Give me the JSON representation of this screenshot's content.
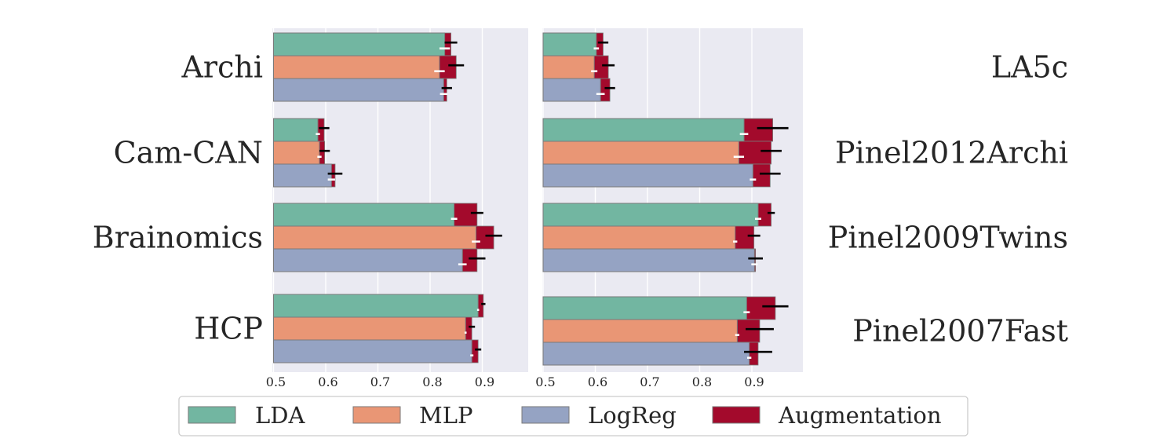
{
  "chart_data": {
    "type": "bar",
    "orientation": "horizontal",
    "title": "",
    "xlabel": "",
    "ylabel": "",
    "xlim": [
      0.5,
      1.0
    ],
    "xticks": [
      "0.5",
      "0.6",
      "0.7",
      "0.8",
      "0.9"
    ],
    "grid": true,
    "legend": {
      "position": "bottom-center",
      "entries": [
        {
          "name": "LDA",
          "color": "#72b6a1"
        },
        {
          "name": "MLP",
          "color": "#e99675"
        },
        {
          "name": "LogReg",
          "color": "#95a3c3"
        },
        {
          "name": "Augmentation",
          "color": "#a30a2c"
        }
      ]
    },
    "panels": [
      {
        "label_side": "left",
        "datasets": [
          {
            "name": "Archi",
            "bars": [
              {
                "model": "LDA",
                "base": 0.828,
                "base_err": 0.01,
                "aug": 0.84,
                "aug_err": 0.012
              },
              {
                "model": "MLP",
                "base": 0.818,
                "base_err": 0.01,
                "aug": 0.85,
                "aug_err": 0.015
              },
              {
                "model": "LogReg",
                "base": 0.826,
                "base_err": 0.007,
                "aug": 0.832,
                "aug_err": 0.01
              }
            ]
          },
          {
            "name": "Cam-CAN",
            "bars": [
              {
                "model": "LDA",
                "base": 0.585,
                "base_err": 0.004,
                "aug": 0.597,
                "aug_err": 0.01
              },
              {
                "model": "MLP",
                "base": 0.588,
                "base_err": 0.004,
                "aug": 0.598,
                "aug_err": 0.01
              },
              {
                "model": "LogReg",
                "base": 0.611,
                "base_err": 0.007,
                "aug": 0.618,
                "aug_err": 0.014
              }
            ]
          },
          {
            "name": "Brainomics",
            "bars": [
              {
                "model": "LDA",
                "base": 0.846,
                "base_err": 0.006,
                "aug": 0.89,
                "aug_err": 0.012
              },
              {
                "model": "MLP",
                "base": 0.888,
                "base_err": 0.008,
                "aug": 0.922,
                "aug_err": 0.016
              },
              {
                "model": "LogReg",
                "base": 0.862,
                "base_err": 0.008,
                "aug": 0.89,
                "aug_err": 0.016
              }
            ]
          },
          {
            "name": "HCP",
            "bars": [
              {
                "model": "LDA",
                "base": 0.892,
                "base_err": 0.002,
                "aug": 0.902,
                "aug_err": 0.004
              },
              {
                "model": "MLP",
                "base": 0.868,
                "base_err": 0.002,
                "aug": 0.88,
                "aug_err": 0.006
              },
              {
                "model": "LogReg",
                "base": 0.88,
                "base_err": 0.003,
                "aug": 0.892,
                "aug_err": 0.006
              }
            ]
          }
        ]
      },
      {
        "label_side": "right",
        "datasets": [
          {
            "name": "LA5c",
            "bars": [
              {
                "model": "LDA",
                "base": 0.602,
                "base_err": 0.005,
                "aug": 0.615,
                "aug_err": 0.01
              },
              {
                "model": "MLP",
                "base": 0.598,
                "base_err": 0.006,
                "aug": 0.625,
                "aug_err": 0.012
              },
              {
                "model": "LogReg",
                "base": 0.61,
                "base_err": 0.008,
                "aug": 0.628,
                "aug_err": 0.01
              }
            ]
          },
          {
            "name": "Pinel2012Archi",
            "bars": [
              {
                "model": "LDA",
                "base": 0.885,
                "base_err": 0.008,
                "aug": 0.94,
                "aug_err": 0.03
              },
              {
                "model": "MLP",
                "base": 0.875,
                "base_err": 0.01,
                "aug": 0.937,
                "aug_err": 0.02
              },
              {
                "model": "LogReg",
                "base": 0.902,
                "base_err": 0.006,
                "aug": 0.935,
                "aug_err": 0.02
              }
            ]
          },
          {
            "name": "Pinel2009Twins",
            "bars": [
              {
                "model": "LDA",
                "base": 0.912,
                "base_err": 0.006,
                "aug": 0.937,
                "aug_err": 0.007
              },
              {
                "model": "MLP",
                "base": 0.868,
                "base_err": 0.004,
                "aug": 0.904,
                "aug_err": 0.012
              },
              {
                "model": "LogReg",
                "base": 0.905,
                "base_err": 0.006,
                "aug": 0.907,
                "aug_err": 0.014
              }
            ]
          },
          {
            "name": "Pinel2007Fast",
            "bars": [
              {
                "model": "LDA",
                "base": 0.89,
                "base_err": 0.006,
                "aug": 0.945,
                "aug_err": 0.025
              },
              {
                "model": "MLP",
                "base": 0.872,
                "base_err": 0.004,
                "aug": 0.915,
                "aug_err": 0.027
              },
              {
                "model": "LogReg",
                "base": 0.895,
                "base_err": 0.004,
                "aug": 0.912,
                "aug_err": 0.027
              }
            ]
          }
        ]
      }
    ]
  }
}
